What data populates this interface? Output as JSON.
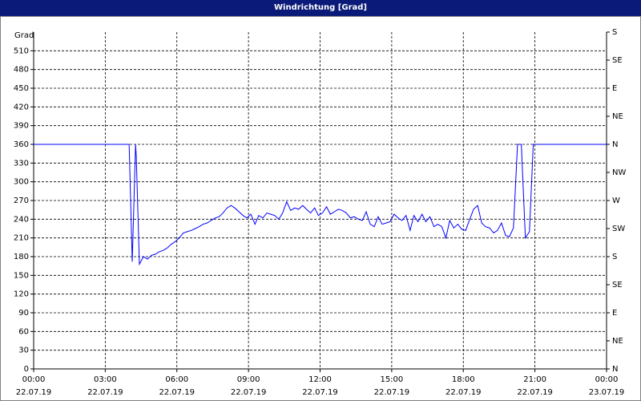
{
  "chart_data": {
    "type": "line",
    "title": "Windrichtung [Grad]",
    "ylabel": "Grad",
    "color": "#0000ff",
    "grid": true,
    "x": [
      0,
      4.0,
      4.13,
      4.27,
      4.3,
      4.43,
      4.6,
      4.77,
      4.93,
      5.1,
      5.27,
      5.43,
      5.6,
      5.77,
      5.93,
      6.1,
      6.27,
      6.43,
      6.6,
      6.77,
      6.93,
      7.1,
      7.27,
      7.43,
      7.6,
      7.77,
      7.93,
      8.1,
      8.27,
      8.43,
      8.6,
      8.77,
      8.93,
      9.1,
      9.27,
      9.43,
      9.6,
      9.77,
      9.93,
      10.1,
      10.27,
      10.43,
      10.6,
      10.77,
      10.93,
      11.1,
      11.27,
      11.43,
      11.6,
      11.77,
      11.93,
      12.1,
      12.27,
      12.43,
      12.6,
      12.77,
      12.93,
      13.1,
      13.27,
      13.43,
      13.6,
      13.77,
      13.93,
      14.1,
      14.27,
      14.43,
      14.6,
      14.77,
      14.93,
      15.1,
      15.27,
      15.43,
      15.6,
      15.77,
      15.93,
      16.1,
      16.27,
      16.43,
      16.6,
      16.77,
      16.93,
      17.1,
      17.27,
      17.43,
      17.6,
      17.77,
      17.93,
      18.1,
      18.27,
      18.43,
      18.6,
      18.77,
      18.93,
      19.1,
      19.27,
      19.43,
      19.6,
      19.77,
      19.93,
      20.1,
      20.27,
      20.43,
      20.6,
      20.77,
      20.93,
      21.1,
      24
    ],
    "values": [
      360,
      360,
      172,
      360,
      340,
      168,
      180,
      176,
      182,
      184,
      188,
      190,
      194,
      200,
      204,
      210,
      218,
      220,
      222,
      225,
      228,
      232,
      234,
      238,
      242,
      244,
      250,
      258,
      262,
      258,
      252,
      246,
      242,
      248,
      232,
      246,
      242,
      250,
      248,
      246,
      240,
      250,
      268,
      254,
      258,
      256,
      262,
      256,
      250,
      258,
      246,
      250,
      260,
      248,
      252,
      256,
      254,
      250,
      242,
      244,
      240,
      238,
      252,
      232,
      228,
      244,
      232,
      234,
      236,
      248,
      242,
      238,
      246,
      222,
      246,
      236,
      248,
      236,
      244,
      228,
      232,
      228,
      210,
      238,
      226,
      232,
      224,
      222,
      240,
      256,
      262,
      234,
      228,
      226,
      218,
      222,
      234,
      214,
      212,
      226,
      360,
      360,
      210,
      220,
      360,
      360,
      360
    ],
    "xlim": [
      0,
      24
    ],
    "xticks": [
      {
        "value": 0,
        "label": "00:00\n22.07.19"
      },
      {
        "value": 3,
        "label": "03:00\n22.07.19"
      },
      {
        "value": 6,
        "label": "06:00\n22.07.19"
      },
      {
        "value": 9,
        "label": "09:00\n22.07.19"
      },
      {
        "value": 12,
        "label": "12:00\n22.07.19"
      },
      {
        "value": 15,
        "label": "15:00\n22.07.19"
      },
      {
        "value": 18,
        "label": "18:00\n22.07.19"
      },
      {
        "value": 21,
        "label": "21:00\n22.07.19"
      },
      {
        "value": 24,
        "label": "00:00\n23.07.19"
      }
    ],
    "ylim": [
      0,
      540
    ],
    "yticks": [
      0,
      30,
      60,
      90,
      120,
      150,
      180,
      210,
      240,
      270,
      300,
      330,
      360,
      390,
      420,
      450,
      480,
      510
    ],
    "y2lim": [
      0,
      540
    ],
    "y2ticks": [
      {
        "value": 0,
        "label": "N"
      },
      {
        "value": 45,
        "label": "NE"
      },
      {
        "value": 90,
        "label": "E"
      },
      {
        "value": 135,
        "label": "SE"
      },
      {
        "value": 180,
        "label": "S"
      },
      {
        "value": 225,
        "label": "SW"
      },
      {
        "value": 270,
        "label": "W"
      },
      {
        "value": 315,
        "label": "NW"
      },
      {
        "value": 360,
        "label": "N"
      },
      {
        "value": 405,
        "label": "NE"
      },
      {
        "value": 450,
        "label": "E"
      },
      {
        "value": 495,
        "label": "SE"
      },
      {
        "value": 540,
        "label": "S"
      }
    ]
  }
}
